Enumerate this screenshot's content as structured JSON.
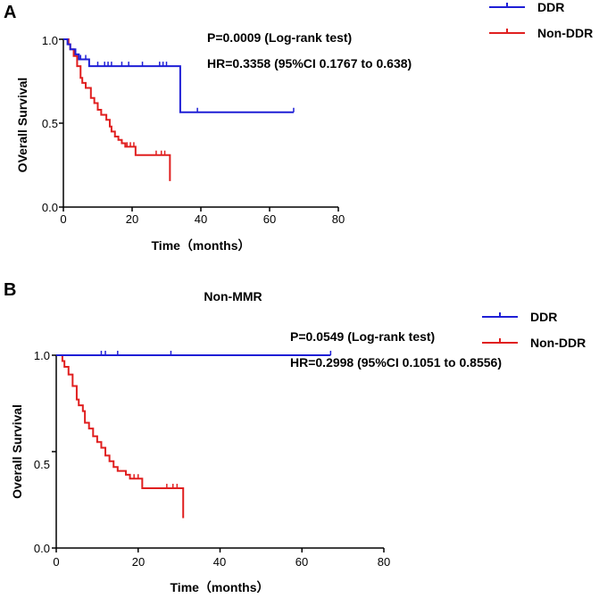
{
  "chart_data": [
    {
      "panel": "A",
      "type": "line",
      "subtype": "kaplan-meier",
      "title": "",
      "xlabel": "Time（months）",
      "ylabel": "OVerall Survival",
      "xlim": [
        0,
        80
      ],
      "ylim": [
        0,
        1.0
      ],
      "xticks": [
        "0",
        "20",
        "40",
        "60",
        "80"
      ],
      "yticks": [
        "0.0",
        "0.5",
        "1.0"
      ],
      "annotations": [
        "P=0.0009 (Log-rank  test)",
        "HR=0.3358 (95%CI 0.1767 to 0.638)"
      ],
      "legend_position": "top-right",
      "series": [
        {
          "name": "DDR",
          "color": "#1f1fd6",
          "steps": [
            [
              0,
              1.0
            ],
            [
              1.2,
              0.97
            ],
            [
              2,
              0.94
            ],
            [
              3.5,
              0.91
            ],
            [
              4.5,
              0.88
            ],
            [
              7.5,
              0.84
            ],
            [
              34,
              0.84
            ],
            [
              34,
              0.565
            ],
            [
              67,
              0.565
            ]
          ],
          "censored": [
            [
              5,
              0.88
            ],
            [
              6.5,
              0.88
            ],
            [
              10,
              0.84
            ],
            [
              12,
              0.84
            ],
            [
              13,
              0.84
            ],
            [
              14,
              0.84
            ],
            [
              17,
              0.84
            ],
            [
              19,
              0.84
            ],
            [
              23,
              0.84
            ],
            [
              28,
              0.84
            ],
            [
              29,
              0.84
            ],
            [
              30,
              0.84
            ],
            [
              39,
              0.565
            ],
            [
              67,
              0.565
            ]
          ]
        },
        {
          "name": "Non-DDR",
          "color": "#e01f1f",
          "steps": [
            [
              0,
              1.0
            ],
            [
              1.5,
              0.97
            ],
            [
              2,
              0.94
            ],
            [
              3,
              0.9
            ],
            [
              4,
              0.84
            ],
            [
              5,
              0.77
            ],
            [
              5.5,
              0.74
            ],
            [
              6.5,
              0.71
            ],
            [
              8,
              0.65
            ],
            [
              9,
              0.62
            ],
            [
              10,
              0.58
            ],
            [
              11,
              0.55
            ],
            [
              12.5,
              0.52
            ],
            [
              13.5,
              0.48
            ],
            [
              14,
              0.45
            ],
            [
              15,
              0.42
            ],
            [
              16,
              0.4
            ],
            [
              17,
              0.38
            ],
            [
              18,
              0.36
            ],
            [
              21,
              0.31
            ],
            [
              31,
              0.31
            ],
            [
              31,
              0.155
            ]
          ],
          "censored": [
            [
              18.5,
              0.36
            ],
            [
              19.5,
              0.36
            ],
            [
              20.5,
              0.36
            ],
            [
              27,
              0.31
            ],
            [
              28.5,
              0.31
            ],
            [
              29.5,
              0.31
            ]
          ]
        }
      ]
    },
    {
      "panel": "B",
      "type": "line",
      "subtype": "kaplan-meier",
      "title": "Non-MMR",
      "xlabel": "Time（months）",
      "ylabel": "Overall Survival",
      "xlim": [
        0,
        80
      ],
      "ylim": [
        0,
        1.0
      ],
      "xticks": [
        "0",
        "20",
        "40",
        "60",
        "80"
      ],
      "yticks": [
        "0.0",
        "0.5",
        "1.0"
      ],
      "annotations": [
        "P=0.0549 (Log-rank  test)",
        "HR=0.2998 (95%CI 0.1051 to 0.8556)"
      ],
      "legend_position": "top-right",
      "series": [
        {
          "name": "DDR",
          "color": "#1f1fd6",
          "steps": [
            [
              0,
              1.0
            ],
            [
              67,
              1.0
            ]
          ],
          "censored": [
            [
              11,
              1.0
            ],
            [
              12,
              1.0
            ],
            [
              15,
              1.0
            ],
            [
              28,
              1.0
            ],
            [
              67,
              1.0
            ]
          ]
        },
        {
          "name": "Non-DDR",
          "color": "#e01f1f",
          "steps": [
            [
              0,
              1.0
            ],
            [
              1.5,
              0.97
            ],
            [
              2,
              0.94
            ],
            [
              3,
              0.9
            ],
            [
              4,
              0.84
            ],
            [
              5,
              0.77
            ],
            [
              5.5,
              0.74
            ],
            [
              6.5,
              0.71
            ],
            [
              7,
              0.65
            ],
            [
              8,
              0.62
            ],
            [
              9,
              0.58
            ],
            [
              10,
              0.55
            ],
            [
              11,
              0.52
            ],
            [
              12,
              0.48
            ],
            [
              13,
              0.45
            ],
            [
              14,
              0.42
            ],
            [
              15,
              0.4
            ],
            [
              17,
              0.38
            ],
            [
              18,
              0.36
            ],
            [
              21,
              0.31
            ],
            [
              31,
              0.31
            ],
            [
              31,
              0.155
            ]
          ],
          "censored": [
            [
              19,
              0.36
            ],
            [
              20,
              0.36
            ],
            [
              27,
              0.31
            ],
            [
              28.5,
              0.31
            ],
            [
              29.5,
              0.31
            ]
          ]
        }
      ]
    }
  ]
}
